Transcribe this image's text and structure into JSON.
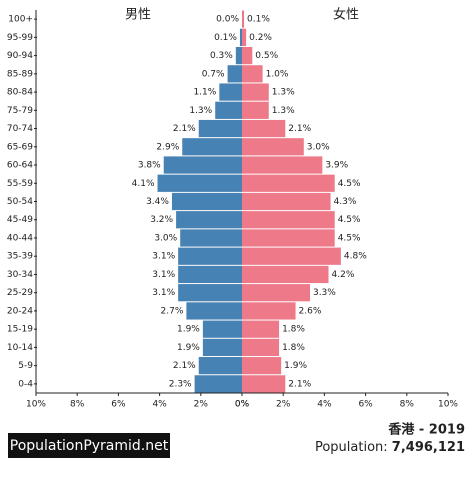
{
  "chart_data": {
    "type": "pyramid",
    "title": "香港 - 2019",
    "population_label": "Population:",
    "population": "7,496,121",
    "brand": "PopulationPyramid.net",
    "categories": [
      "100+",
      "95-99",
      "90-94",
      "85-89",
      "80-84",
      "75-79",
      "70-74",
      "65-69",
      "60-64",
      "55-59",
      "50-54",
      "45-49",
      "40-44",
      "35-39",
      "30-34",
      "25-29",
      "20-24",
      "15-19",
      "10-14",
      "5-9",
      "0-4"
    ],
    "series": [
      {
        "name": "男性",
        "color": "#4682b4",
        "values": [
          0.0,
          0.1,
          0.3,
          0.7,
          1.1,
          1.3,
          2.1,
          2.9,
          3.8,
          4.1,
          3.4,
          3.2,
          3.0,
          3.1,
          3.1,
          3.1,
          2.7,
          1.9,
          1.9,
          2.1,
          2.3
        ],
        "value_labels": [
          "0.0%",
          "0.1%",
          "0.3%",
          "0.7%",
          "1.1%",
          "1.3%",
          "2.1%",
          "2.9%",
          "3.8%",
          "4.1%",
          "3.4%",
          "3.2%",
          "3.0%",
          "3.1%",
          "3.1%",
          "3.1%",
          "2.7%",
          "1.9%",
          "1.9%",
          "2.1%",
          "2.3%"
        ]
      },
      {
        "name": "女性",
        "color": "#ee7989",
        "values": [
          0.1,
          0.2,
          0.5,
          1.0,
          1.3,
          1.3,
          2.1,
          3.0,
          3.9,
          4.5,
          4.3,
          4.5,
          4.5,
          4.8,
          4.2,
          3.3,
          2.6,
          1.8,
          1.8,
          1.9,
          2.1
        ],
        "value_labels": [
          "0.1%",
          "0.2%",
          "0.5%",
          "1.0%",
          "1.3%",
          "1.3%",
          "2.1%",
          "3.0%",
          "3.9%",
          "4.5%",
          "4.3%",
          "4.5%",
          "4.5%",
          "4.8%",
          "4.2%",
          "3.3%",
          "2.6%",
          "1.8%",
          "1.8%",
          "1.9%",
          "2.1%"
        ]
      }
    ],
    "xlim": [
      0,
      10
    ],
    "xticks": [
      {
        "value": 0,
        "label": "0%"
      },
      {
        "value": 2,
        "label": "2%"
      },
      {
        "value": 4,
        "label": "4%"
      },
      {
        "value": 6,
        "label": "6%"
      },
      {
        "value": 8,
        "label": "8%"
      },
      {
        "value": 10,
        "label": "10%"
      }
    ]
  }
}
